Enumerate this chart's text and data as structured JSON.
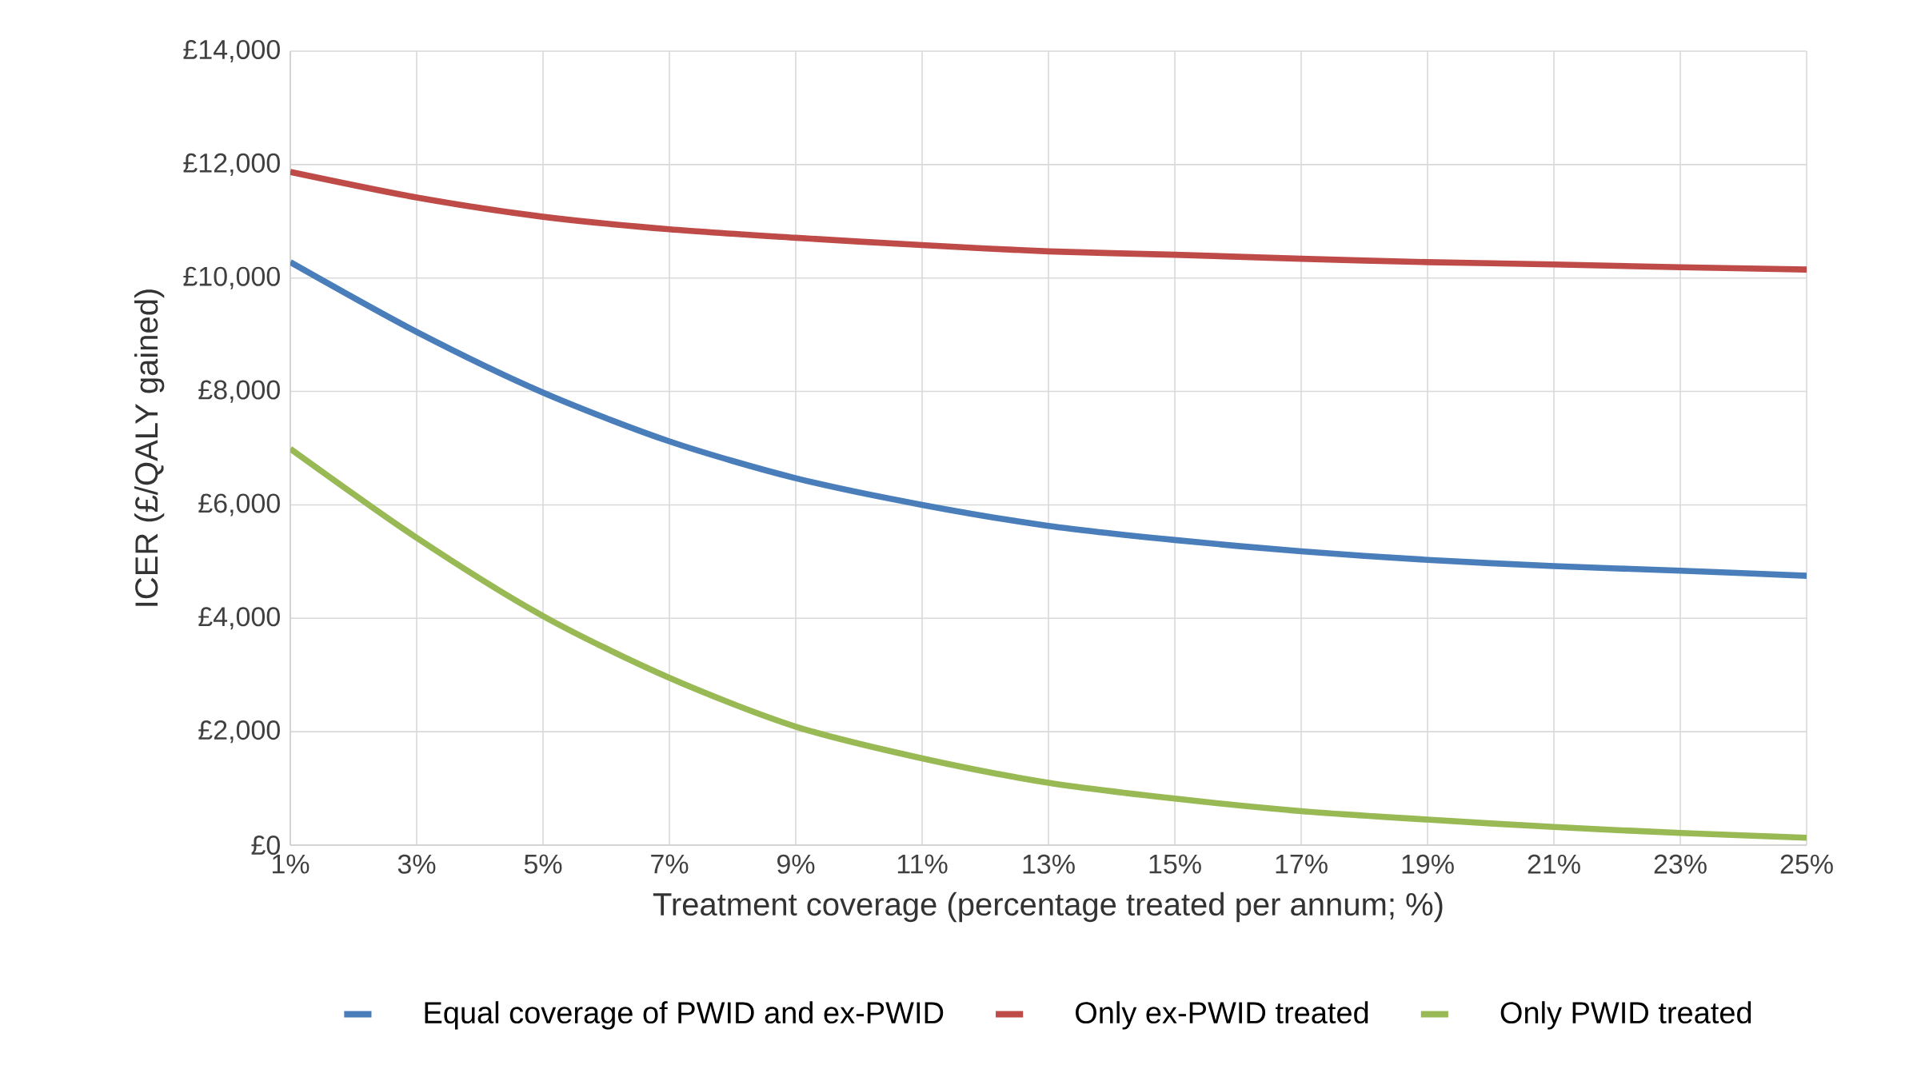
{
  "chart_data": {
    "type": "line",
    "xlabel": "Treatment coverage (percentage treated per annum; %)",
    "ylabel": "ICER (£/QALY gained)",
    "x": [
      1,
      3,
      5,
      7,
      9,
      11,
      13,
      15,
      17,
      19,
      21,
      23,
      25
    ],
    "xlim": [
      1,
      25
    ],
    "xticks": [
      {
        "value": 1,
        "label": "1%"
      },
      {
        "value": 3,
        "label": "3%"
      },
      {
        "value": 5,
        "label": "5%"
      },
      {
        "value": 7,
        "label": "7%"
      },
      {
        "value": 9,
        "label": "9%"
      },
      {
        "value": 11,
        "label": "11%"
      },
      {
        "value": 13,
        "label": "13%"
      },
      {
        "value": 15,
        "label": "15%"
      },
      {
        "value": 17,
        "label": "17%"
      },
      {
        "value": 19,
        "label": "19%"
      },
      {
        "value": 21,
        "label": "21%"
      },
      {
        "value": 23,
        "label": "23%"
      },
      {
        "value": 25,
        "label": "25%"
      }
    ],
    "ylim": [
      0,
      14000
    ],
    "yticks": [
      {
        "value": 0,
        "label": "£0"
      },
      {
        "value": 2000,
        "label": "£2,000"
      },
      {
        "value": 4000,
        "label": "£4,000"
      },
      {
        "value": 6000,
        "label": "£6,000"
      },
      {
        "value": 8000,
        "label": "£8,000"
      },
      {
        "value": 10000,
        "label": "£10,000"
      },
      {
        "value": 12000,
        "label": "£12,000"
      },
      {
        "value": 14000,
        "label": "£14,000"
      }
    ],
    "series": [
      {
        "name": "Equal coverage of PWID and ex-PWID",
        "color": "#4a7ebb",
        "values": [
          10280,
          9050,
          7980,
          7120,
          6470,
          6000,
          5630,
          5380,
          5180,
          5030,
          4920,
          4840,
          4750
        ]
      },
      {
        "name": "Only ex-PWID treated",
        "color": "#be4b48",
        "values": [
          11870,
          11420,
          11080,
          10860,
          10710,
          10580,
          10470,
          10410,
          10340,
          10280,
          10240,
          10190,
          10150
        ]
      },
      {
        "name": "Only PWID treated",
        "color": "#98b954",
        "values": [
          6990,
          5420,
          4040,
          2950,
          2090,
          1530,
          1100,
          820,
          600,
          450,
          320,
          215,
          130
        ]
      }
    ],
    "grid": true,
    "legend": "bottom",
    "marker": "none",
    "line_style": "solid"
  }
}
